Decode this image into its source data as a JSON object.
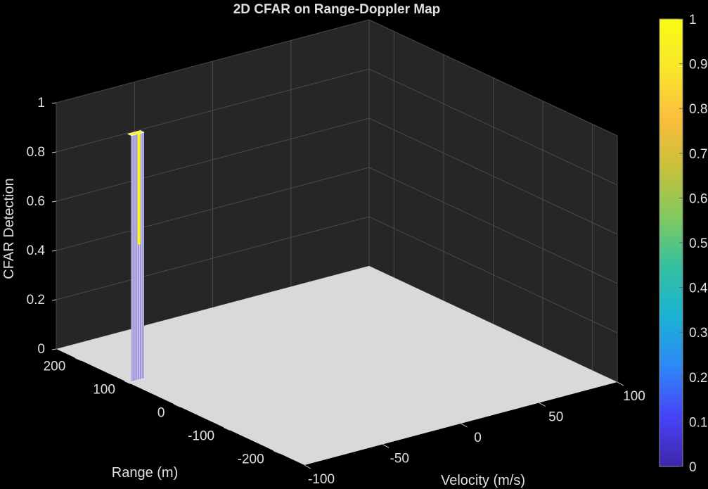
{
  "chart_data": {
    "type": "surface3d",
    "title": "2D CFAR on Range-Doppler Map",
    "xlabel": "Velocity (m/s)",
    "ylabel": "Range (m)",
    "zlabel": "CFAR Detection",
    "xlim": [
      -100,
      100
    ],
    "ylim": [
      -250,
      250
    ],
    "zlim": [
      0,
      1
    ],
    "x_ticks": [
      "-100",
      "-50",
      "0",
      "50",
      "100"
    ],
    "x_tick_values": [
      -100,
      -50,
      0,
      50,
      100
    ],
    "y_ticks": [
      "-200",
      "-100",
      "0",
      "100",
      "200"
    ],
    "y_tick_values": [
      -200,
      -100,
      0,
      100,
      200
    ],
    "z_ticks": [
      "0",
      "0.2",
      "0.4",
      "0.6",
      "0.8",
      "1"
    ],
    "z_tick_values": [
      0,
      0.2,
      0.4,
      0.6,
      0.8,
      1
    ],
    "detection": {
      "velocity_range": [
        -98,
        -90
      ],
      "range_range": [
        105,
        112
      ],
      "value": 1
    },
    "colorbar": {
      "ticks": [
        "0",
        "0.1",
        "0.2",
        "0.3",
        "0.4",
        "0.5",
        "0.6",
        "0.7",
        "0.8",
        "0.9",
        "1"
      ],
      "colormap": "parula",
      "colors": [
        "#3e26a8",
        "#4743f8",
        "#2e87f7",
        "#1ab2d5",
        "#33c0a2",
        "#80c95f",
        "#c7c13a",
        "#fbbd3d",
        "#f9e62c",
        "#f9fb15"
      ]
    },
    "grid": true,
    "background": "#000000",
    "axes_color": "#262626",
    "floor_color": "#d9d9d9"
  }
}
